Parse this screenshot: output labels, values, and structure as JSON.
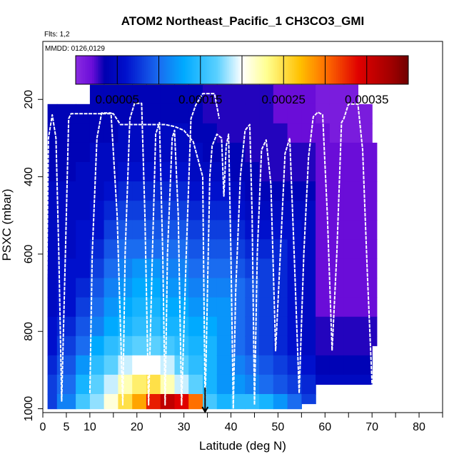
{
  "chart_data": {
    "type": "heatmap",
    "title": "ATOM2 Northeast_Pacific_1 CH3CO3_GMI",
    "subtitle_flights": "Flts: 1,2",
    "subtitle_dates": "MMDD: 0126,0129",
    "xlabel": "Latitude (deg N)",
    "ylabel": "PSXC (mbar)",
    "xlim": [
      0,
      85
    ],
    "ylim": [
      1010,
      50
    ],
    "y_reversed": true,
    "x_ticks": [
      0,
      5,
      10,
      20,
      30,
      40,
      50,
      60,
      70,
      80
    ],
    "x_minor_ticks": [
      15,
      25,
      35,
      45,
      55,
      65,
      75,
      85
    ],
    "y_ticks": [
      200,
      400,
      600,
      800,
      1000
    ],
    "colorbar": {
      "range": [
        0,
        0.0004
      ],
      "tick_values": [
        5e-05,
        0.00015,
        0.00025,
        0.00035
      ],
      "tick_labels": [
        "0.00005",
        "0.00015",
        "0.00025",
        "0.00035"
      ],
      "separators": [
        5e-05,
        0.0001,
        0.00015,
        0.0002,
        0.00025,
        0.0003,
        0.00035,
        0.0004
      ],
      "stops": [
        {
          "v": 0.0,
          "c": "#8a2be2"
        },
        {
          "v": 2e-05,
          "c": "#6a0dd8"
        },
        {
          "v": 3.5e-05,
          "c": "#0000b0"
        },
        {
          "v": 6e-05,
          "c": "#0010cc"
        },
        {
          "v": 0.0001,
          "c": "#1a6cf0"
        },
        {
          "v": 0.00013,
          "c": "#00aaff"
        },
        {
          "v": 0.00017,
          "c": "#5ad0ff"
        },
        {
          "v": 0.0002,
          "c": "#ffffff"
        },
        {
          "v": 0.00023,
          "c": "#ffff90"
        },
        {
          "v": 0.00027,
          "c": "#ffc000"
        },
        {
          "v": 0.0003,
          "c": "#ff7000"
        },
        {
          "v": 0.00034,
          "c": "#e00000"
        },
        {
          "v": 0.00038,
          "c": "#a00000"
        },
        {
          "v": 0.0004,
          "c": "#700000"
        }
      ]
    },
    "pressure_levels": [
      187,
      237,
      287,
      337,
      387,
      437,
      487,
      537,
      587,
      637,
      687,
      737,
      787,
      837,
      887,
      937,
      987
    ],
    "lat_bins": [
      {
        "lat": [
          1,
          3
        ],
        "top": 237,
        "bottom": 1000,
        "values": [
          4e-05,
          4e-05,
          4e-05,
          4e-05,
          4e-05,
          5e-05,
          5e-05,
          5e-05,
          5e-05,
          5e-05,
          5e-05,
          5e-05,
          6e-05,
          6e-05,
          7e-05,
          8e-05,
          8e-05
        ]
      },
      {
        "lat": [
          3,
          7
        ],
        "top": 237,
        "bottom": 1000,
        "values": [
          4e-05,
          4e-05,
          4e-05,
          4e-05,
          4e-05,
          5e-05,
          5e-05,
          5e-05,
          5e-05,
          6e-05,
          6e-05,
          6e-05,
          7e-05,
          8e-05,
          9e-05,
          0.0001,
          0.00011
        ]
      },
      {
        "lat": [
          7,
          10
        ],
        "top": 237,
        "bottom": 1000,
        "values": [
          4e-05,
          4e-05,
          4e-05,
          4e-05,
          5e-05,
          5e-05,
          5e-05,
          6e-05,
          6e-05,
          6e-05,
          7e-05,
          8e-05,
          9e-05,
          0.0001,
          0.00012,
          0.00014,
          0.00016
        ]
      },
      {
        "lat": [
          10,
          13
        ],
        "top": 187,
        "bottom": 1000,
        "values": [
          4e-05,
          4e-05,
          4e-05,
          5e-05,
          5e-05,
          5e-05,
          6e-05,
          6e-05,
          7e-05,
          8e-05,
          9e-05,
          0.0001,
          0.00011,
          0.00013,
          0.00015,
          0.00017,
          0.00018
        ]
      },
      {
        "lat": [
          13,
          16
        ],
        "top": 187,
        "bottom": 1000,
        "values": [
          4e-05,
          4e-05,
          4e-05,
          5e-05,
          5e-05,
          6e-05,
          7e-05,
          8e-05,
          9e-05,
          0.0001,
          0.00011,
          0.00012,
          0.00013,
          0.00015,
          0.00017,
          0.00019,
          0.00021
        ]
      },
      {
        "lat": [
          16,
          19
        ],
        "top": 187,
        "bottom": 1000,
        "values": [
          4e-05,
          4e-05,
          5e-05,
          5e-05,
          6e-05,
          7e-05,
          8e-05,
          9e-05,
          0.0001,
          0.00011,
          0.00012,
          0.00013,
          0.00014,
          0.00016,
          0.00019,
          0.00022,
          0.00025
        ]
      },
      {
        "lat": [
          19,
          22
        ],
        "top": 187,
        "bottom": 1000,
        "values": [
          4e-05,
          4e-05,
          5e-05,
          5e-05,
          6e-05,
          7e-05,
          8e-05,
          9e-05,
          0.0001,
          0.00012,
          0.00013,
          0.00014,
          0.00015,
          0.00017,
          0.0002,
          0.00024,
          0.00028
        ]
      },
      {
        "lat": [
          22,
          25
        ],
        "top": 187,
        "bottom": 1000,
        "values": [
          4e-05,
          4e-05,
          5e-05,
          5e-05,
          6e-05,
          7e-05,
          8e-05,
          9e-05,
          0.0001,
          0.00012,
          0.00013,
          0.00014,
          0.00015,
          0.00017,
          0.0002,
          0.00025,
          0.00033
        ]
      },
      {
        "lat": [
          25,
          28
        ],
        "top": 187,
        "bottom": 1000,
        "values": [
          4e-05,
          4e-05,
          5e-05,
          5e-05,
          6e-05,
          7e-05,
          8e-05,
          9e-05,
          0.0001,
          0.00011,
          0.00012,
          0.00013,
          0.00014,
          0.00016,
          0.00019,
          0.00022,
          0.00036
        ]
      },
      {
        "lat": [
          28,
          31
        ],
        "top": 187,
        "bottom": 1000,
        "values": [
          4e-05,
          4e-05,
          5e-05,
          5e-05,
          6e-05,
          7e-05,
          8e-05,
          9e-05,
          0.0001,
          0.00011,
          0.00012,
          0.00013,
          0.00014,
          0.00015,
          0.00017,
          0.00019,
          0.00034
        ]
      },
      {
        "lat": [
          31,
          34
        ],
        "top": 187,
        "bottom": 1000,
        "values": [
          4e-05,
          4e-05,
          4e-05,
          5e-05,
          5e-05,
          6e-05,
          7e-05,
          8e-05,
          9e-05,
          0.0001,
          0.00011,
          0.00012,
          0.00013,
          0.00014,
          0.00015,
          0.00017,
          0.0003
        ]
      },
      {
        "lat": [
          34,
          37
        ],
        "top": 187,
        "bottom": 1000,
        "values": [
          3e-05,
          3e-05,
          4e-05,
          4e-05,
          5e-05,
          6e-05,
          7e-05,
          8e-05,
          9e-05,
          0.0001,
          0.00011,
          0.00012,
          0.00013,
          0.00014,
          0.00014,
          0.00014,
          0.00016
        ]
      },
      {
        "lat": [
          37,
          40
        ],
        "top": 187,
        "bottom": 1000,
        "values": [
          3e-05,
          3e-05,
          3e-05,
          4e-05,
          5e-05,
          6e-05,
          7e-05,
          8e-05,
          9e-05,
          0.0001,
          0.00011,
          0.00012,
          0.00012,
          0.00012,
          0.00012,
          0.00012,
          0.00014
        ]
      },
      {
        "lat": [
          40,
          43
        ],
        "top": 187,
        "bottom": 1000,
        "values": [
          3e-05,
          3e-05,
          3e-05,
          4e-05,
          4e-05,
          5e-05,
          6e-05,
          7e-05,
          8e-05,
          9e-05,
          0.0001,
          0.0001,
          0.0001,
          0.0001,
          0.00011,
          0.00012,
          0.00015
        ]
      },
      {
        "lat": [
          43,
          46
        ],
        "top": 187,
        "bottom": 1000,
        "values": [
          3e-05,
          3e-05,
          3e-05,
          3e-05,
          4e-05,
          4e-05,
          5e-05,
          6e-05,
          7e-05,
          8e-05,
          9e-05,
          9e-05,
          9e-05,
          9e-05,
          0.0001,
          0.00011,
          0.00015
        ]
      },
      {
        "lat": [
          46,
          49
        ],
        "top": 187,
        "bottom": 1000,
        "values": [
          3e-05,
          3e-05,
          3e-05,
          3e-05,
          3e-05,
          4e-05,
          5e-05,
          6e-05,
          7e-05,
          8e-05,
          8e-05,
          8e-05,
          8e-05,
          8e-05,
          9e-05,
          0.0001,
          0.00014
        ]
      },
      {
        "lat": [
          49,
          52
        ],
        "top": 187,
        "bottom": 1000,
        "values": [
          2e-05,
          2e-05,
          3e-05,
          3e-05,
          3e-05,
          4e-05,
          5e-05,
          6e-05,
          7e-05,
          7e-05,
          7e-05,
          7e-05,
          7e-05,
          7e-05,
          8e-05,
          9e-05,
          0.00012
        ]
      },
      {
        "lat": [
          52,
          55
        ],
        "top": 187,
        "bottom": 1000,
        "values": [
          2e-05,
          2e-05,
          2e-05,
          3e-05,
          3e-05,
          4e-05,
          5e-05,
          6e-05,
          6e-05,
          6e-05,
          6e-05,
          6e-05,
          6e-05,
          6e-05,
          7e-05,
          8e-05,
          0.0001
        ]
      },
      {
        "lat": [
          55,
          58
        ],
        "top": 187,
        "bottom": 987,
        "values": [
          2e-05,
          2e-05,
          2e-05,
          3e-05,
          3e-05,
          4e-05,
          5e-05,
          5e-05,
          5e-05,
          5e-05,
          5e-05,
          5e-05,
          5e-05,
          5e-05,
          6e-05,
          7e-05,
          8e-05
        ]
      },
      {
        "lat": [
          58,
          61
        ],
        "top": 187,
        "bottom": 937,
        "values": [
          1e-05,
          1e-05,
          2e-05,
          2e-05,
          2e-05,
          2e-05,
          2e-05,
          2e-05,
          2e-05,
          2e-05,
          2e-05,
          2e-05,
          3e-05,
          3e-05,
          4e-05,
          5e-05,
          6e-05
        ]
      },
      {
        "lat": [
          61,
          64
        ],
        "top": 187,
        "bottom": 937,
        "values": [
          1e-05,
          1e-05,
          1e-05,
          2e-05,
          2e-05,
          2e-05,
          2e-05,
          2e-05,
          2e-05,
          2e-05,
          2e-05,
          2e-05,
          3e-05,
          3e-05,
          4e-05,
          5e-05,
          6e-05
        ]
      },
      {
        "lat": [
          64,
          67
        ],
        "top": 187,
        "bottom": 937,
        "values": [
          1e-05,
          1e-05,
          1e-05,
          2e-05,
          2e-05,
          2e-05,
          2e-05,
          2e-05,
          2e-05,
          2e-05,
          2e-05,
          2e-05,
          3e-05,
          3e-05,
          4e-05,
          5e-05,
          5e-05
        ]
      },
      {
        "lat": [
          67,
          70
        ],
        "top": 237,
        "bottom": 937,
        "values": [
          1e-05,
          1e-05,
          1e-05,
          2e-05,
          2e-05,
          2e-05,
          2e-05,
          2e-05,
          2e-05,
          2e-05,
          2e-05,
          2e-05,
          3e-05,
          3e-05,
          4e-05,
          5e-05,
          5e-05
        ]
      },
      {
        "lat": [
          70,
          71
        ],
        "top": 337,
        "bottom": 837,
        "values": [
          1e-05,
          1e-05,
          1e-05,
          2e-05,
          2e-05,
          2e-05,
          2e-05,
          2e-05,
          2e-05,
          2e-05,
          2e-05,
          2e-05,
          3e-05,
          3e-05,
          4e-05,
          5e-05,
          5e-05
        ]
      }
    ],
    "flight_track": [
      [
        0.5,
        1000
      ],
      [
        1.2,
        300
      ],
      [
        2,
        240
      ],
      [
        2.8,
        300
      ],
      [
        3.4,
        600
      ],
      [
        4,
        980
      ],
      [
        4.8,
        600
      ],
      [
        5.5,
        250
      ],
      [
        6,
        237
      ],
      [
        9,
        237
      ],
      [
        15,
        237
      ],
      [
        16.5,
        265
      ],
      [
        22.5,
        265
      ],
      [
        26,
        265
      ],
      [
        28,
        270
      ],
      [
        30,
        280
      ],
      [
        32,
        310
      ],
      [
        34,
        400
      ],
      [
        34.5,
        1000
      ],
      [
        35,
        700
      ],
      [
        35.5,
        400
      ],
      [
        36,
        320
      ],
      [
        37,
        290
      ],
      [
        38,
        300
      ],
      [
        38.5,
        450
      ],
      [
        39,
        320
      ],
      [
        39.5,
        290
      ],
      [
        40,
        600
      ],
      [
        40.5,
        1000
      ],
      [
        41,
        700
      ],
      [
        42,
        400
      ],
      [
        43,
        280
      ],
      [
        44,
        265
      ],
      [
        44.5,
        500
      ],
      [
        45,
        990
      ],
      [
        45.6,
        600
      ],
      [
        46.5,
        330
      ],
      [
        47.5,
        305
      ],
      [
        48.5,
        420
      ],
      [
        49.5,
        850
      ],
      [
        50.5,
        600
      ],
      [
        51.5,
        340
      ],
      [
        52.5,
        300
      ],
      [
        53.5,
        620
      ],
      [
        54.5,
        960
      ],
      [
        55.5,
        600
      ],
      [
        56.5,
        350
      ],
      [
        57.5,
        245
      ],
      [
        58.5,
        233
      ],
      [
        59.5,
        240
      ],
      [
        60.5,
        500
      ],
      [
        61.5,
        850
      ],
      [
        62.5,
        600
      ],
      [
        63.5,
        260
      ],
      [
        64,
        250
      ],
      [
        65,
        212
      ],
      [
        67,
        212
      ],
      [
        68,
        330
      ],
      [
        69,
        650
      ],
      [
        69.8,
        880
      ],
      [
        70.2,
        990
      ]
    ],
    "flight_track_2": [
      [
        10,
        960
      ],
      [
        10.5,
        600
      ],
      [
        11.5,
        300
      ],
      [
        12.5,
        235
      ],
      [
        14.5,
        235
      ],
      [
        15.8,
        500
      ],
      [
        17,
        990
      ],
      [
        17.5,
        600
      ],
      [
        18.5,
        250
      ],
      [
        19.5,
        210
      ],
      [
        21,
        210
      ],
      [
        21.7,
        500
      ],
      [
        22.5,
        990
      ],
      [
        23.3,
        600
      ],
      [
        24,
        290
      ],
      [
        24.8,
        260
      ],
      [
        25.5,
        600
      ],
      [
        26,
        990
      ],
      [
        26.5,
        600
      ],
      [
        27.5,
        300
      ],
      [
        28,
        280
      ],
      [
        28.8,
        500
      ],
      [
        29.5,
        990
      ],
      [
        30.5,
        600
      ],
      [
        31.5,
        250
      ],
      [
        32.5,
        215
      ],
      [
        34,
        185
      ],
      [
        36.5,
        185
      ],
      [
        37.5,
        250
      ]
    ],
    "arrow_marker_lat": 34.5
  }
}
